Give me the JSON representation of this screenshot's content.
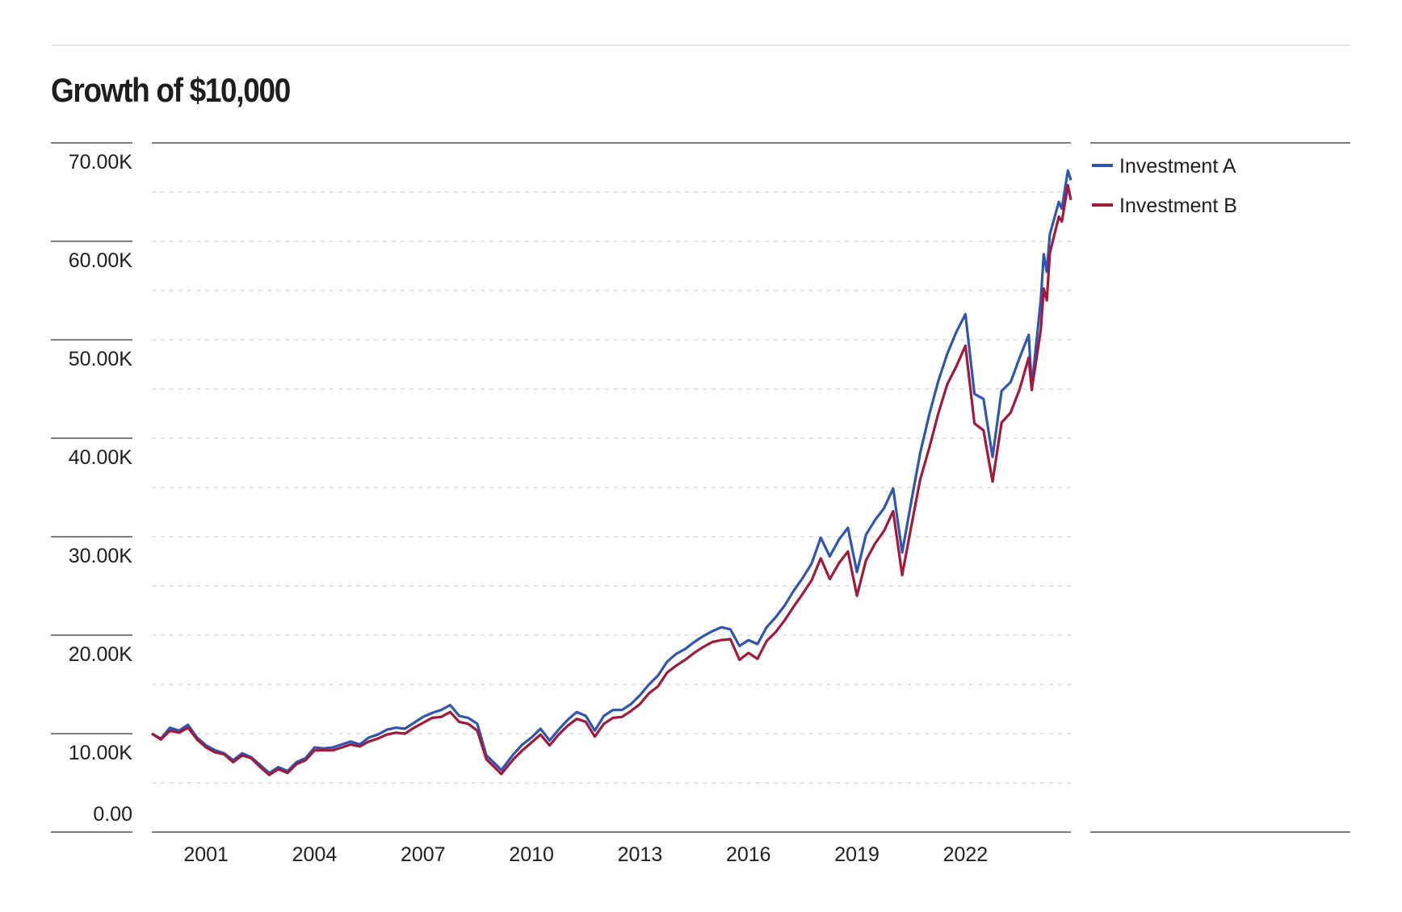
{
  "chart_data": {
    "type": "line",
    "title": "Growth of $10,000",
    "xlabel": "",
    "ylabel": "",
    "ylim": [
      0,
      70000
    ],
    "y_ticks": [
      0,
      10000,
      20000,
      30000,
      40000,
      50000,
      60000,
      70000
    ],
    "y_tick_labels": [
      "0.00",
      "10.00K",
      "20.00K",
      "30.00K",
      "40.00K",
      "50.00K",
      "60.00K",
      "70.00K"
    ],
    "x_tick_labels": [
      "2001",
      "2004",
      "2007",
      "2010",
      "2013",
      "2016",
      "2019",
      "2022"
    ],
    "grid": true,
    "legend_position": "right",
    "x": [
      "1999-07",
      "1999-10",
      "2000-01",
      "2000-04",
      "2000-07",
      "2000-10",
      "2001-01",
      "2001-04",
      "2001-07",
      "2001-10",
      "2002-01",
      "2002-04",
      "2002-07",
      "2002-10",
      "2003-01",
      "2003-04",
      "2003-07",
      "2003-10",
      "2004-01",
      "2004-04",
      "2004-07",
      "2004-10",
      "2005-01",
      "2005-04",
      "2005-07",
      "2005-10",
      "2006-01",
      "2006-04",
      "2006-07",
      "2006-10",
      "2007-01",
      "2007-04",
      "2007-07",
      "2007-10",
      "2008-01",
      "2008-04",
      "2008-07",
      "2008-10",
      "2009-01",
      "2009-03",
      "2009-07",
      "2009-10",
      "2010-01",
      "2010-04",
      "2010-07",
      "2010-10",
      "2011-01",
      "2011-04",
      "2011-07",
      "2011-10",
      "2012-01",
      "2012-04",
      "2012-07",
      "2012-10",
      "2013-01",
      "2013-04",
      "2013-07",
      "2013-10",
      "2014-01",
      "2014-04",
      "2014-07",
      "2014-10",
      "2015-01",
      "2015-04",
      "2015-07",
      "2015-10",
      "2016-01",
      "2016-04",
      "2016-07",
      "2016-10",
      "2017-01",
      "2017-04",
      "2017-07",
      "2017-10",
      "2018-01",
      "2018-04",
      "2018-07",
      "2018-10",
      "2019-01",
      "2019-04",
      "2019-07",
      "2019-10",
      "2020-01",
      "2020-04",
      "2020-07",
      "2020-10",
      "2021-01",
      "2021-04",
      "2021-07",
      "2021-10",
      "2022-01",
      "2022-04",
      "2022-07",
      "2022-10",
      "2023-01",
      "2023-04",
      "2023-07",
      "2023-10",
      "2023-11",
      "2024-02",
      "2024-03",
      "2024-04",
      "2024-05",
      "2024-08",
      "2024-09",
      "2024-11",
      "2024-12"
    ],
    "series": [
      {
        "name": "Investment A",
        "color": "#2f55b4",
        "values": [
          10000,
          9500,
          10600,
          10300,
          10900,
          9600,
          8800,
          8300,
          8000,
          7300,
          8000,
          7600,
          6800,
          6000,
          6600,
          6200,
          7100,
          7500,
          8600,
          8500,
          8600,
          8900,
          9200,
          8900,
          9600,
          9900,
          10400,
          10600,
          10500,
          11100,
          11700,
          12100,
          12400,
          12900,
          11800,
          11600,
          11000,
          7800,
          6900,
          6300,
          7900,
          8900,
          9600,
          10500,
          9300,
          10400,
          11400,
          12200,
          11800,
          10300,
          11800,
          12400,
          12400,
          13000,
          13900,
          15000,
          15900,
          17300,
          18100,
          18600,
          19300,
          19900,
          20400,
          20800,
          20600,
          18900,
          19500,
          19100,
          20800,
          21800,
          23000,
          24500,
          25800,
          27300,
          29900,
          28000,
          29700,
          30900,
          26400,
          30200,
          31700,
          32900,
          34900,
          28400,
          33500,
          38500,
          42400,
          45800,
          48600,
          50800,
          52600,
          44500,
          44000,
          38100,
          44800,
          45700,
          48200,
          50500,
          45200,
          54000,
          58700,
          56900,
          60700,
          64000,
          63300,
          67200,
          66200
        ]
      },
      {
        "name": "Investment B",
        "color": "#a3193a",
        "values": [
          10000,
          9400,
          10300,
          10100,
          10600,
          9400,
          8600,
          8100,
          7900,
          7100,
          7800,
          7500,
          6600,
          5800,
          6400,
          6000,
          6900,
          7300,
          8300,
          8300,
          8300,
          8600,
          8900,
          8700,
          9200,
          9500,
          9900,
          10100,
          10000,
          10600,
          11100,
          11600,
          11700,
          12200,
          11200,
          11000,
          10300,
          7400,
          6500,
          5900,
          7400,
          8300,
          9100,
          9900,
          8800,
          9900,
          10800,
          11500,
          11200,
          9700,
          11000,
          11600,
          11700,
          12300,
          13000,
          14100,
          14800,
          16200,
          16900,
          17500,
          18200,
          18800,
          19300,
          19500,
          19600,
          17500,
          18200,
          17600,
          19400,
          20300,
          21500,
          22900,
          24200,
          25600,
          27800,
          25700,
          27300,
          28500,
          24000,
          27600,
          29300,
          30600,
          32600,
          26100,
          31000,
          35800,
          39000,
          42500,
          45500,
          47300,
          49400,
          41500,
          40800,
          35600,
          41600,
          42600,
          45000,
          48200,
          44900,
          51000,
          55200,
          54000,
          58800,
          62500,
          62000,
          65700,
          64200
        ]
      }
    ]
  }
}
